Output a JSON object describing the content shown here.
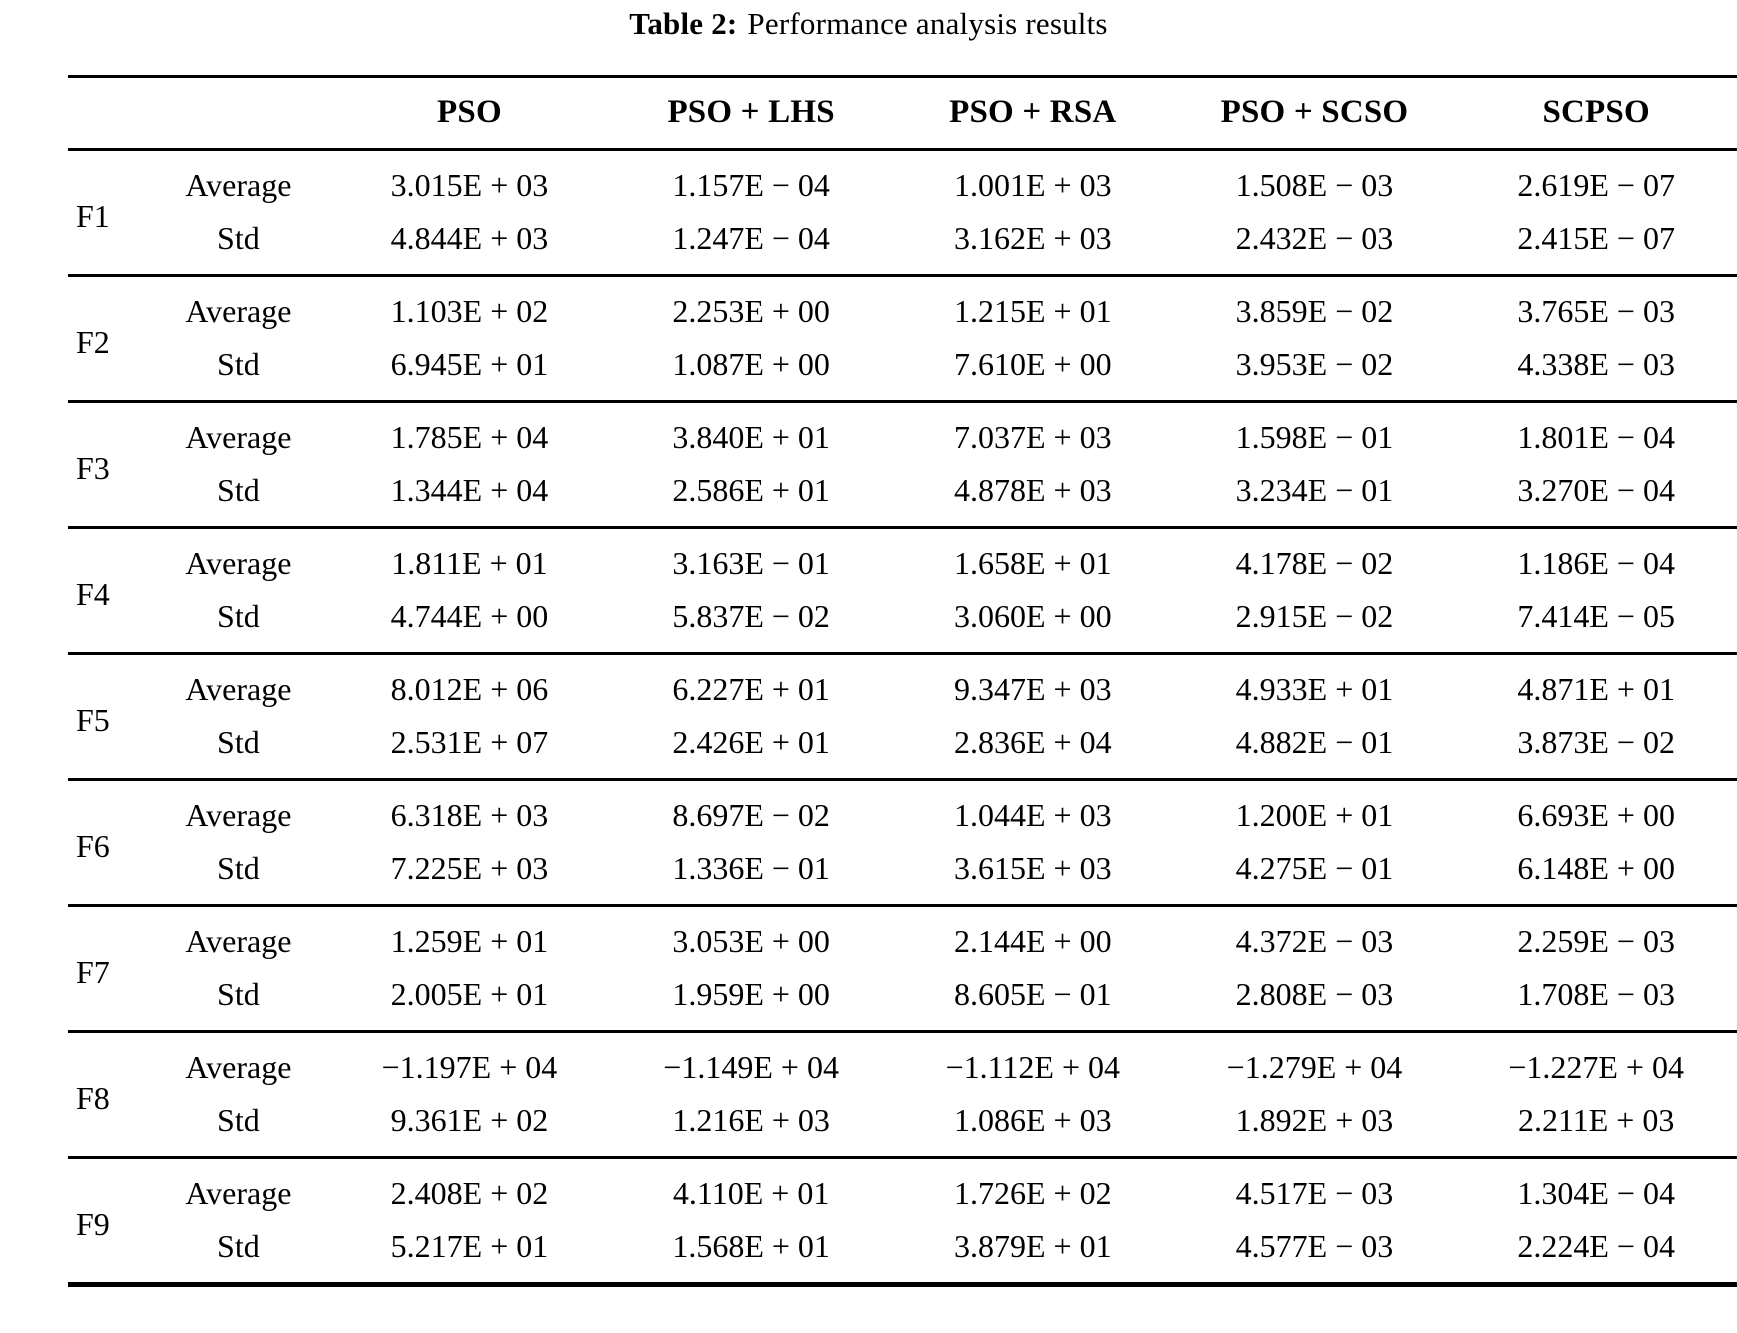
{
  "title": {
    "label": "Table 2:",
    "text": "Performance analysis results"
  },
  "table": {
    "columns": [
      "PSO",
      "PSO + LHS",
      "PSO + RSA",
      "PSO + SCSO",
      "SCPSO"
    ],
    "stat_labels": [
      "Average",
      "Std"
    ],
    "rows": [
      {
        "name": "F1",
        "average": [
          "3.015E + 03",
          "1.157E − 04",
          "1.001E + 03",
          "1.508E − 03",
          "2.619E − 07"
        ],
        "std": [
          "4.844E + 03",
          "1.247E − 04",
          "3.162E + 03",
          "2.432E − 03",
          "2.415E − 07"
        ]
      },
      {
        "name": "F2",
        "average": [
          "1.103E + 02",
          "2.253E + 00",
          "1.215E + 01",
          "3.859E − 02",
          "3.765E − 03"
        ],
        "std": [
          "6.945E + 01",
          "1.087E + 00",
          "7.610E + 00",
          "3.953E − 02",
          "4.338E − 03"
        ]
      },
      {
        "name": "F3",
        "average": [
          "1.785E + 04",
          "3.840E + 01",
          "7.037E + 03",
          "1.598E − 01",
          "1.801E − 04"
        ],
        "std": [
          "1.344E + 04",
          "2.586E + 01",
          "4.878E + 03",
          "3.234E − 01",
          "3.270E − 04"
        ]
      },
      {
        "name": "F4",
        "average": [
          "1.811E + 01",
          "3.163E − 01",
          "1.658E + 01",
          "4.178E − 02",
          "1.186E − 04"
        ],
        "std": [
          "4.744E + 00",
          "5.837E − 02",
          "3.060E + 00",
          "2.915E − 02",
          "7.414E − 05"
        ]
      },
      {
        "name": "F5",
        "average": [
          "8.012E + 06",
          "6.227E + 01",
          "9.347E + 03",
          "4.933E + 01",
          "4.871E + 01"
        ],
        "std": [
          "2.531E + 07",
          "2.426E + 01",
          "2.836E + 04",
          "4.882E − 01",
          "3.873E − 02"
        ]
      },
      {
        "name": "F6",
        "average": [
          "6.318E + 03",
          "8.697E − 02",
          "1.044E + 03",
          "1.200E + 01",
          "6.693E + 00"
        ],
        "std": [
          "7.225E + 03",
          "1.336E − 01",
          "3.615E + 03",
          "4.275E − 01",
          "6.148E + 00"
        ]
      },
      {
        "name": "F7",
        "average": [
          "1.259E + 01",
          "3.053E + 00",
          "2.144E + 00",
          "4.372E − 03",
          "2.259E − 03"
        ],
        "std": [
          "2.005E + 01",
          "1.959E + 00",
          "8.605E − 01",
          "2.808E − 03",
          "1.708E − 03"
        ]
      },
      {
        "name": "F8",
        "average": [
          "−1.197E + 04",
          "−1.149E + 04",
          "−1.112E + 04",
          "−1.279E + 04",
          "−1.227E + 04"
        ],
        "std": [
          "9.361E + 02",
          "1.216E + 03",
          "1.086E + 03",
          "1.892E + 03",
          "2.211E + 03"
        ]
      },
      {
        "name": "F9",
        "average": [
          "2.408E + 02",
          "4.110E + 01",
          "1.726E + 02",
          "4.517E − 03",
          "1.304E − 04"
        ],
        "std": [
          "5.217E + 01",
          "1.568E + 01",
          "3.879E + 01",
          "4.577E − 03",
          "2.224E − 04"
        ]
      }
    ]
  }
}
